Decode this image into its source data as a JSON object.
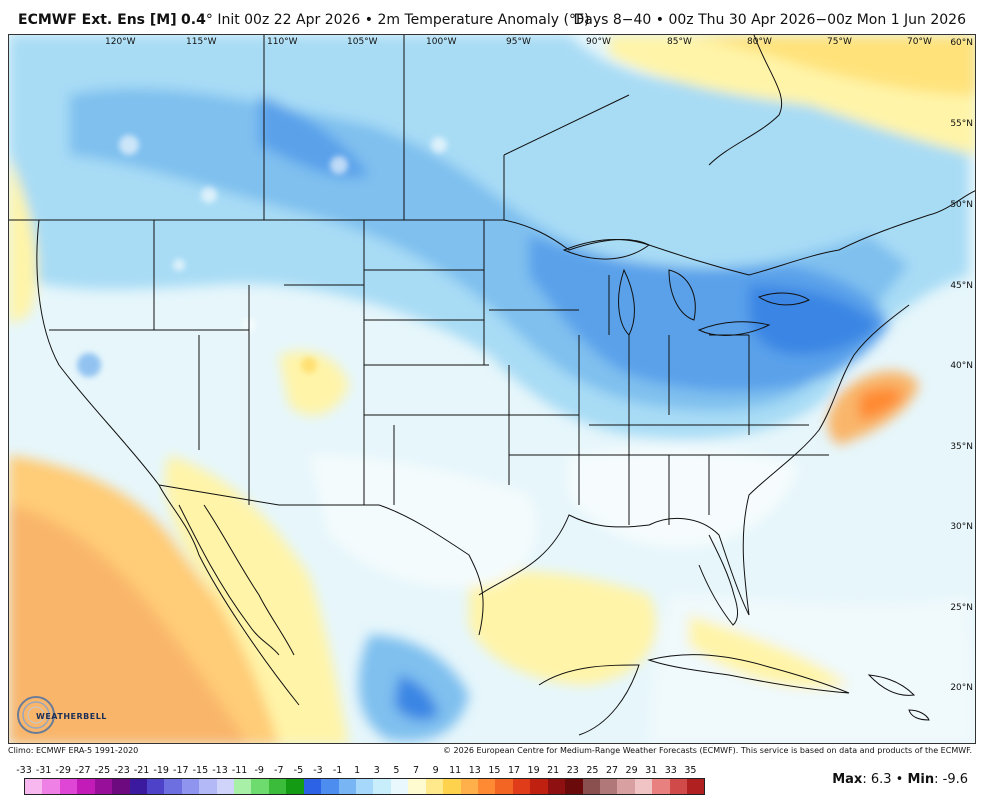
{
  "header": {
    "model": "ECMWF Ext. Ens [M]",
    "resolution": "0.4",
    "resolution_unit": "°",
    "init": "Init 00z 22 Apr 2026",
    "sep1": "•",
    "variable": "2m Temperature Anomaly (°F)",
    "valid": "Days 8−40 • 00z Thu 30 Apr 2026−00z Mon 1 Jun 2026"
  },
  "map": {
    "longitude_labels": [
      "120°W",
      "115°W",
      "110°W",
      "105°W",
      "100°W",
      "95°W",
      "90°W",
      "85°W",
      "80°W",
      "75°W",
      "70°W"
    ],
    "latitude_labels": [
      "60°N",
      "55°N",
      "50°N",
      "45°N",
      "40°N",
      "35°N",
      "30°N",
      "25°N",
      "20°N"
    ],
    "logo_text": "WEATHERBELL"
  },
  "footer": {
    "climo": "Climo: ECMWF ERA-5 1991-2020",
    "copyright": "© 2026 European Centre for Medium-Range Weather Forecasts (ECMWF). This service is based on data and products of the ECMWF."
  },
  "scale": {
    "labels": [
      "-33",
      "-31",
      "-29",
      "-27",
      "-25",
      "-23",
      "-21",
      "-19",
      "-17",
      "-15",
      "-13",
      "-11",
      "-9",
      "-7",
      "-5",
      "-3",
      "-1",
      "1",
      "3",
      "5",
      "7",
      "9",
      "11",
      "13",
      "15",
      "17",
      "19",
      "21",
      "23",
      "25",
      "27",
      "29",
      "31",
      "33",
      "35"
    ],
    "colors": [
      "#f7b8f0",
      "#ef80e6",
      "#e046d6",
      "#c21bb8",
      "#98109a",
      "#6e0a80",
      "#3b1aa0",
      "#4e43c8",
      "#6d6ee0",
      "#8f95ee",
      "#b3b8f6",
      "#d0d3fa",
      "#a8f0a8",
      "#6edb6e",
      "#3bbd3b",
      "#149b14",
      "#2c63e6",
      "#4d8df0",
      "#78b5f5",
      "#a6d8fb",
      "#c8eefc",
      "#e8f8fd",
      "#fffbd0",
      "#ffe98a",
      "#ffd24d",
      "#ffb04a",
      "#ff8a33",
      "#f26522",
      "#e03c1a",
      "#c0200f",
      "#8f1010",
      "#6a0a0a",
      "#8a5050",
      "#b07878",
      "#d8a0a0",
      "#f0c4c4",
      "#e88080",
      "#d04a4a",
      "#b02020"
    ]
  },
  "stats": {
    "max_label": "Max",
    "max_value": ": 6.3",
    "sep": "•",
    "min_label": "Min",
    "min_value": ": -9.6"
  }
}
